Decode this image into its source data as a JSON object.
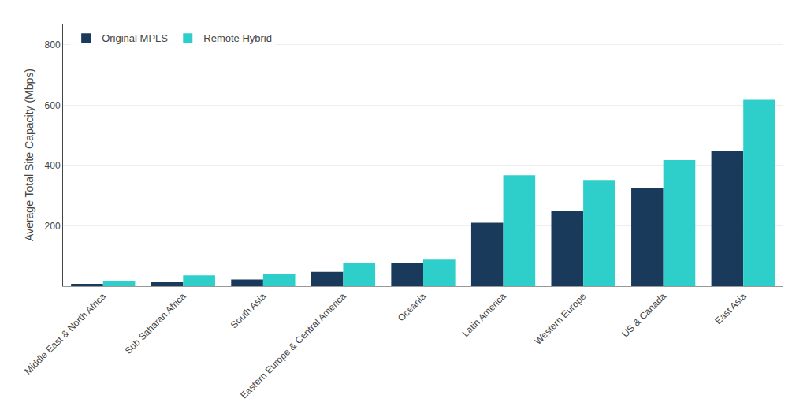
{
  "chart_data": {
    "type": "bar",
    "categories": [
      "Middle East & North Africa",
      "Sub Saharan Africa",
      "South Asia",
      "Eastern Europe & Central America",
      "Oceania",
      "Latin America",
      "Western Europe",
      "US & Canada",
      "East Asia"
    ],
    "series": [
      {
        "name": "Original MPLS",
        "color": "#1a3a5c",
        "values": [
          8,
          13,
          22,
          48,
          78,
          210,
          248,
          325,
          448
        ]
      },
      {
        "name": "Remote Hybrid",
        "color": "#2ecfca",
        "values": [
          16,
          36,
          40,
          78,
          88,
          368,
          352,
          418,
          618
        ]
      }
    ],
    "ylabel": "Average Total Site Capacity (Mbps)",
    "ylim": [
      0,
      870
    ],
    "yticks": [
      200,
      400,
      600,
      800
    ],
    "grid": true,
    "legend": "upper left"
  }
}
